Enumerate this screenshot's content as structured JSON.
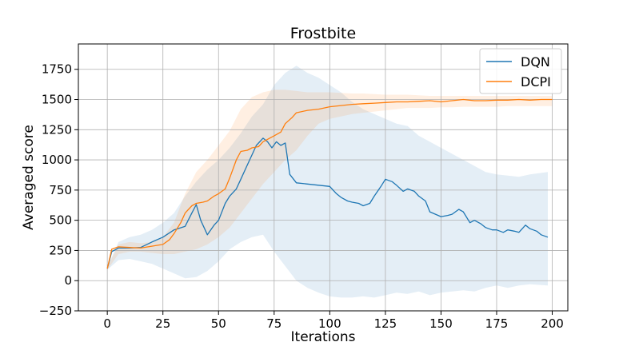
{
  "chart_data": {
    "type": "line",
    "title": "Frostbite",
    "xlabel": "Iterations",
    "ylabel": "Averaged score",
    "xlim": [
      -13,
      207
    ],
    "ylim": [
      -250,
      1960
    ],
    "xticks": [
      0,
      25,
      50,
      75,
      100,
      125,
      150,
      175,
      200
    ],
    "yticks": [
      -250,
      0,
      250,
      500,
      750,
      1000,
      1250,
      1500,
      1750
    ],
    "grid": true,
    "legend": "top-right",
    "series": [
      {
        "name": "DQN",
        "color": "#1f77b4",
        "x": [
          0,
          2,
          5,
          10,
          15,
          20,
          25,
          30,
          35,
          38,
          40,
          42,
          45,
          48,
          50,
          53,
          55,
          58,
          60,
          63,
          65,
          67,
          70,
          72,
          74,
          76,
          78,
          80,
          82,
          85,
          90,
          95,
          100,
          103,
          105,
          108,
          110,
          113,
          115,
          118,
          120,
          123,
          125,
          128,
          130,
          133,
          135,
          138,
          140,
          143,
          145,
          150,
          153,
          155,
          158,
          160,
          163,
          165,
          168,
          170,
          173,
          175,
          178,
          180,
          183,
          185,
          188,
          190,
          193,
          195,
          198
        ],
        "y": [
          100,
          240,
          270,
          270,
          275,
          320,
          360,
          420,
          450,
          560,
          630,
          500,
          380,
          460,
          500,
          640,
          700,
          760,
          840,
          960,
          1040,
          1120,
          1180,
          1150,
          1100,
          1150,
          1120,
          1140,
          880,
          810,
          800,
          790,
          780,
          720,
          690,
          660,
          650,
          640,
          620,
          640,
          700,
          780,
          840,
          820,
          790,
          740,
          760,
          740,
          700,
          660,
          570,
          530,
          540,
          550,
          590,
          570,
          480,
          500,
          470,
          440,
          420,
          420,
          400,
          420,
          410,
          400,
          460,
          430,
          410,
          380,
          360
        ]
      },
      {
        "name": "DCPI",
        "color": "#ff7f0e",
        "x": [
          0,
          2,
          5,
          10,
          15,
          20,
          25,
          28,
          30,
          33,
          35,
          38,
          40,
          43,
          45,
          48,
          50,
          53,
          55,
          58,
          60,
          63,
          65,
          68,
          70,
          73,
          75,
          78,
          80,
          83,
          85,
          90,
          95,
          100,
          105,
          110,
          115,
          120,
          125,
          130,
          135,
          140,
          145,
          150,
          155,
          160,
          165,
          170,
          175,
          180,
          185,
          190,
          195,
          200
        ],
        "y": [
          100,
          260,
          280,
          275,
          270,
          285,
          300,
          340,
          390,
          480,
          560,
          620,
          640,
          650,
          660,
          700,
          720,
          760,
          850,
          1000,
          1070,
          1080,
          1100,
          1110,
          1150,
          1180,
          1200,
          1230,
          1300,
          1350,
          1390,
          1410,
          1420,
          1440,
          1450,
          1460,
          1465,
          1470,
          1475,
          1480,
          1480,
          1485,
          1490,
          1480,
          1490,
          1500,
          1490,
          1490,
          1495,
          1495,
          1500,
          1495,
          1500,
          1500
        ]
      }
    ],
    "bands": [
      {
        "series": "DQN",
        "upper": [
          110,
          320,
          360,
          380,
          420,
          480,
          560,
          700,
          820,
          920,
          1000,
          1100,
          1220,
          1360,
          1460,
          1620,
          1720,
          1780,
          1720,
          1680,
          1620,
          1560,
          1480,
          1420,
          1380,
          1340,
          1300,
          1280,
          1200,
          1150,
          1100,
          1050,
          1000,
          950,
          900,
          880,
          870,
          860,
          880,
          900
        ],
        "lower": [
          90,
          170,
          180,
          160,
          140,
          100,
          60,
          20,
          30,
          80,
          160,
          260,
          320,
          360,
          380,
          240,
          120,
          0,
          -60,
          -100,
          -130,
          -140,
          -140,
          -130,
          -140,
          -120,
          -100,
          -110,
          -90,
          -120,
          -100,
          -90,
          -80,
          -90,
          -60,
          -40,
          -60,
          -40,
          -30,
          -40
        ],
        "x": [
          0,
          5,
          10,
          15,
          20,
          25,
          30,
          35,
          40,
          45,
          50,
          55,
          60,
          65,
          70,
          75,
          80,
          85,
          90,
          95,
          100,
          105,
          110,
          115,
          120,
          125,
          130,
          135,
          140,
          145,
          150,
          155,
          160,
          165,
          170,
          175,
          180,
          185,
          190,
          198
        ]
      },
      {
        "series": "DCPI",
        "upper": [
          110,
          300,
          320,
          310,
          320,
          360,
          480,
          720,
          900,
          1000,
          1120,
          1240,
          1420,
          1520,
          1560,
          1580,
          1580,
          1570,
          1560,
          1560,
          1560,
          1555,
          1550,
          1550,
          1545,
          1540,
          1540,
          1540,
          1535,
          1530,
          1530,
          1530,
          1530,
          1530,
          1530,
          1530,
          1530,
          1530,
          1530,
          1530
        ],
        "lower": [
          90,
          220,
          240,
          240,
          230,
          220,
          220,
          240,
          260,
          300,
          360,
          440,
          560,
          680,
          800,
          900,
          1000,
          1080,
          1200,
          1300,
          1340,
          1360,
          1380,
          1390,
          1400,
          1410,
          1420,
          1430,
          1430,
          1430,
          1435,
          1435,
          1440,
          1440,
          1440,
          1440,
          1445,
          1445,
          1445,
          1445
        ],
        "x": [
          0,
          5,
          10,
          15,
          20,
          25,
          30,
          35,
          40,
          45,
          50,
          55,
          60,
          65,
          70,
          75,
          80,
          85,
          90,
          95,
          100,
          105,
          110,
          115,
          120,
          125,
          130,
          135,
          140,
          145,
          150,
          155,
          160,
          165,
          170,
          175,
          180,
          185,
          190,
          200
        ]
      }
    ]
  }
}
